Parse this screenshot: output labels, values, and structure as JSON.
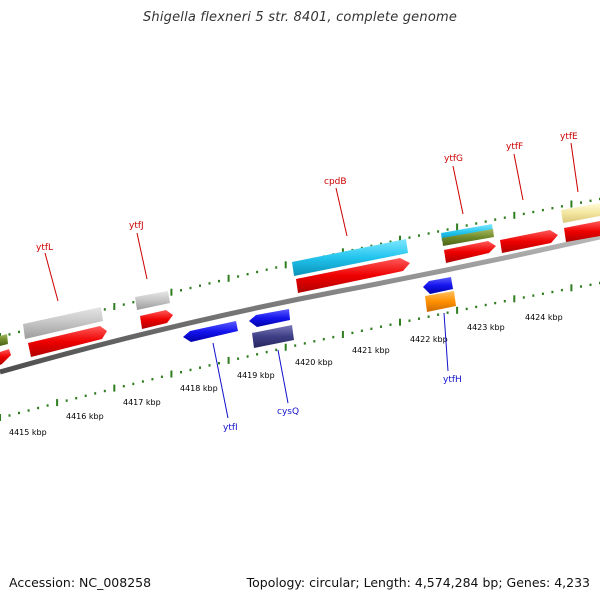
{
  "title": "Shigella flexneri 5 str. 8401, complete genome",
  "footer": {
    "accession": "Accession: NC_008258",
    "summary": "Topology: circular; Length: 4,574,284 bp; Genes: 4,233"
  },
  "colors": {
    "backbone": "#7a7a7a",
    "tick": "#2e7d1e",
    "forward_label": "#cc0000",
    "reverse_label": "#1010cc"
  },
  "kbp_labels": [
    "4415 kbp",
    "4416 kbp",
    "4417 kbp",
    "4418 kbp",
    "4419 kbp",
    "4420 kbp",
    "4421 kbp",
    "4422 kbp",
    "4423 kbp",
    "4424 kbp"
  ],
  "forward_genes": [
    "ytfL",
    "ytfJ",
    "cpdB",
    "ytfG",
    "ytfF",
    "ytfE"
  ],
  "reverse_genes": [
    "ytfI",
    "cysQ",
    "ytfH"
  ]
}
